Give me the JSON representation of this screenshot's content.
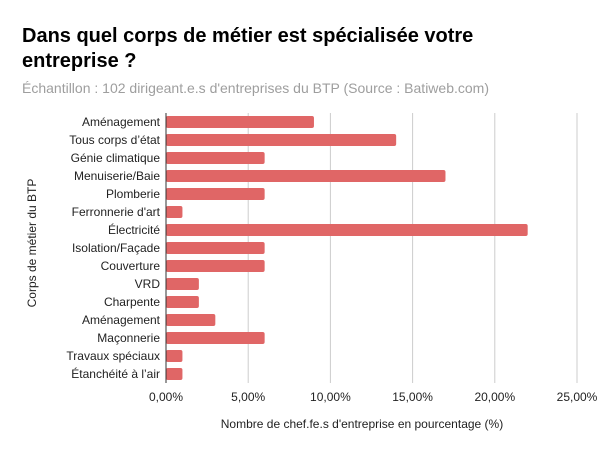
{
  "chart_data": {
    "type": "bar",
    "orientation": "horizontal",
    "title": "Dans quel corps de métier est spécialisée votre entreprise ?",
    "title_lines": [
      "Dans quel corps de métier est spécialisée votre",
      "entreprise ?"
    ],
    "subtitle": "Échantillon : 102 dirigeant.e.s d'entreprises du BTP (Source : Batiweb.com)",
    "xlabel": "Nombre de chef.fe.s d'entreprise en pourcentage (%)",
    "ylabel": "Corps de métier du BTP",
    "categories": [
      "Aménagement",
      "Tous corps d’état",
      "Génie climatique",
      "Menuiserie/Baie",
      "Plomberie",
      "Ferronnerie d'art",
      "Électricité",
      "Isolation/Façade",
      "Couverture",
      "VRD",
      "Charpente",
      "Aménagement",
      "Maçonnerie",
      "Travaux spéciaux",
      "Étanchéité à l’air"
    ],
    "values": [
      9,
      14,
      6,
      17,
      6,
      1,
      22,
      6,
      6,
      2,
      2,
      3,
      6,
      1,
      1
    ],
    "xlim": [
      0,
      25
    ],
    "xticks": [
      0,
      5,
      10,
      15,
      20,
      25
    ],
    "xtick_labels": [
      "0,00%",
      "5,00%",
      "10,00%",
      "15,00%",
      "20,00%",
      "25,00%"
    ],
    "grid": "vertical",
    "bar_color": "#e06666"
  }
}
